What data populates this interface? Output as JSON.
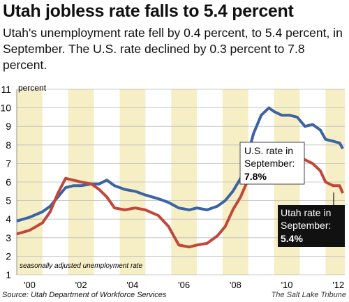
{
  "title": "Utah jobless rate falls to 5.4 percent",
  "subtitle": "Utah's unemployment rate fell by 0.4 percent, to 5.4 percent, in September. The U.S. rate declined by 0.3 percent to 7.8 percent.",
  "source": "Source: Utah Department of Workforce Services",
  "credit": "The Salt Lake Tribune",
  "colors": {
    "us": "#3c63a3",
    "utah": "#c0473a",
    "band": "#f6efc6"
  },
  "chart_data": {
    "type": "line",
    "ylabel": "percent",
    "note": "seasonally adjusted unemployment rate",
    "ylim": [
      1,
      11
    ],
    "xlim": [
      2000,
      2012.75
    ],
    "yticks": [
      1,
      2,
      3,
      4,
      5,
      6,
      7,
      8,
      9,
      10,
      11
    ],
    "xticks": [
      {
        "value": 2000,
        "label": "'00"
      },
      {
        "value": 2002,
        "label": "'02"
      },
      {
        "value": 2004,
        "label": "'04"
      },
      {
        "value": 2006,
        "label": "'06"
      },
      {
        "value": 2008,
        "label": "'08"
      },
      {
        "value": 2010,
        "label": "'10"
      },
      {
        "value": 2012,
        "label": "'12"
      }
    ],
    "series": [
      {
        "name": "U.S.",
        "x": [
          2000,
          2000.5,
          2001,
          2001.3,
          2001.6,
          2001.9,
          2002.2,
          2002.5,
          2002.9,
          2003.2,
          2003.5,
          2003.8,
          2004.2,
          2004.6,
          2005,
          2005.5,
          2005.9,
          2006.3,
          2006.7,
          2007,
          2007.4,
          2007.8,
          2008.1,
          2008.4,
          2008.7,
          2008.95,
          2009.2,
          2009.5,
          2009.8,
          2010,
          2010.3,
          2010.6,
          2010.9,
          2011.2,
          2011.5,
          2011.8,
          2012,
          2012.3,
          2012.55,
          2012.67
        ],
        "y": [
          3.9,
          4.1,
          4.4,
          4.7,
          5.2,
          5.7,
          5.8,
          5.8,
          5.9,
          5.9,
          6.1,
          5.8,
          5.6,
          5.5,
          5.3,
          5.1,
          4.9,
          4.6,
          4.5,
          4.6,
          4.5,
          4.7,
          5.0,
          5.5,
          6.2,
          7.3,
          8.6,
          9.6,
          10.0,
          9.8,
          9.6,
          9.6,
          9.5,
          9.0,
          9.1,
          8.8,
          8.3,
          8.2,
          8.1,
          7.8
        ]
      },
      {
        "name": "Utah",
        "x": [
          2000,
          2000.5,
          2001,
          2001.3,
          2001.6,
          2001.9,
          2002.2,
          2002.5,
          2002.9,
          2003.2,
          2003.5,
          2003.8,
          2004.2,
          2004.6,
          2005,
          2005.5,
          2005.9,
          2006.3,
          2006.7,
          2007,
          2007.4,
          2007.8,
          2008.1,
          2008.4,
          2008.7,
          2008.95,
          2009.2,
          2009.5,
          2009.8,
          2010,
          2010.3,
          2010.6,
          2010.9,
          2011.2,
          2011.5,
          2011.8,
          2012,
          2012.3,
          2012.55,
          2012.67
        ],
        "y": [
          3.2,
          3.4,
          3.8,
          4.4,
          5.4,
          6.2,
          6.1,
          6.0,
          5.9,
          5.6,
          5.2,
          4.6,
          4.5,
          4.6,
          4.5,
          4.2,
          3.6,
          2.6,
          2.5,
          2.6,
          2.7,
          3.1,
          3.6,
          4.5,
          5.2,
          6.0,
          6.8,
          7.3,
          7.6,
          7.7,
          7.7,
          7.6,
          7.5,
          7.2,
          7.0,
          6.6,
          6.0,
          5.8,
          5.8,
          5.4
        ]
      }
    ],
    "annotations": {
      "us": {
        "line1": "U.S. rate in",
        "line2": "September:",
        "value": "7.8%"
      },
      "utah": {
        "line1": "Utah rate in",
        "line2": "September:",
        "value": "5.4%"
      }
    }
  }
}
